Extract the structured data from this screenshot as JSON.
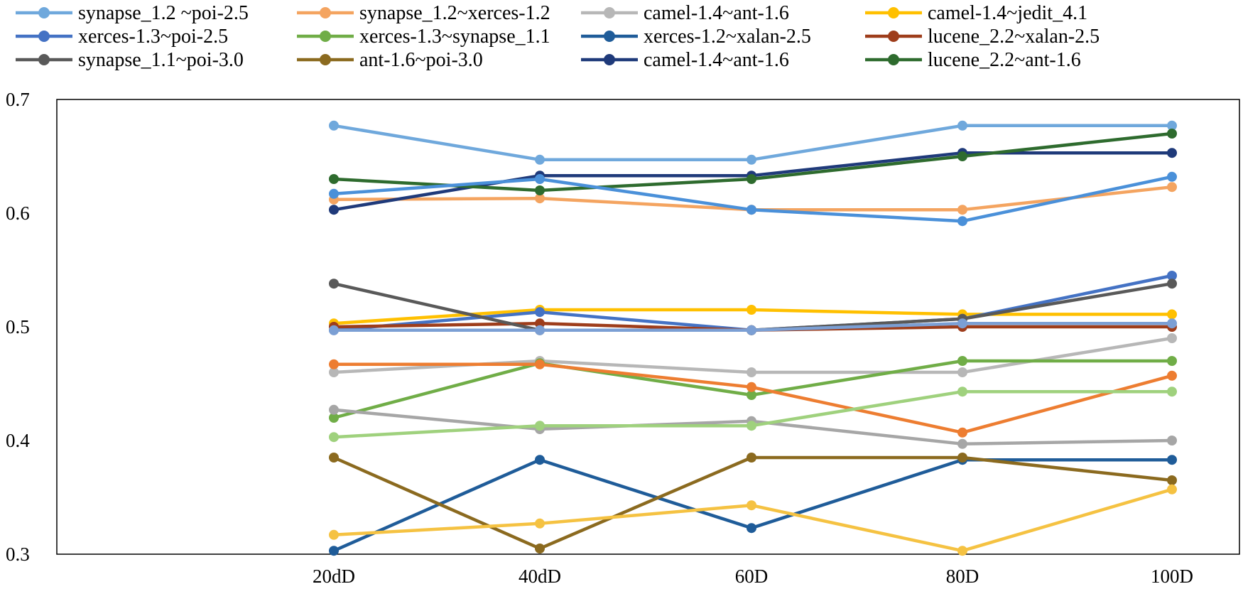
{
  "chart_data": {
    "type": "line",
    "title": "",
    "xlabel": "",
    "ylabel": "",
    "categories": [
      "20dD",
      "40dD",
      "60D",
      "80D",
      "100D"
    ],
    "ylim": [
      0.3,
      0.7
    ],
    "yticks": [
      "0.3",
      "0.4",
      "0.5",
      "0.6",
      "0.7"
    ],
    "legend_position": "top",
    "series": [
      {
        "name": "synapse_1.2 ~poi-2.5",
        "color": "#6fa8dc",
        "values": [
          0.677,
          0.647,
          0.647,
          0.677,
          0.677
        ]
      },
      {
        "name": "synapse_1.2~xerces-1.2",
        "color": "#f4a460",
        "values": [
          0.612,
          0.613,
          0.603,
          0.603,
          0.623
        ]
      },
      {
        "name": "camel-1.4~ant-1.6",
        "color": "#b7b7b7",
        "values": [
          0.46,
          0.47,
          0.46,
          0.46,
          0.49
        ]
      },
      {
        "name": "camel-1.4~jedit_4.1",
        "color": "#ffc000",
        "values": [
          0.503,
          0.515,
          0.515,
          0.511,
          0.511
        ]
      },
      {
        "name": "xerces-1.3~poi-2.5",
        "color": "#4472c4",
        "values": [
          0.497,
          0.513,
          0.497,
          0.507,
          0.545
        ]
      },
      {
        "name": "xerces-1.3~synapse_1.1",
        "color": "#70ad47",
        "values": [
          0.42,
          0.468,
          0.44,
          0.47,
          0.47
        ]
      },
      {
        "name": "xerces-1.2~xalan-2.5",
        "color": "#1f5c99",
        "values": [
          0.303,
          0.383,
          0.323,
          0.383,
          0.383
        ]
      },
      {
        "name": "lucene_2.2~xalan-2.5",
        "color": "#9e3d1b",
        "values": [
          0.5,
          0.503,
          0.497,
          0.5,
          0.5
        ]
      },
      {
        "name": "synapse_1.1~poi-3.0",
        "color": "#595959",
        "values": [
          0.538,
          0.497,
          0.497,
          0.507,
          0.538
        ]
      },
      {
        "name": "ant-1.6~poi-3.0",
        "color": "#8b6a1f",
        "values": [
          0.385,
          0.305,
          0.385,
          0.385,
          0.365
        ]
      },
      {
        "name": "camel-1.4~ant-1.6",
        "color": "#1f3a7a",
        "values": [
          0.603,
          0.633,
          0.633,
          0.653,
          0.653
        ]
      },
      {
        "name": "lucene_2.2~ant-1.6",
        "color": "#2e6b2e",
        "values": [
          0.63,
          0.62,
          0.63,
          0.65,
          0.67
        ]
      },
      {
        "name": "",
        "color": "#ed7d31",
        "values": [
          0.467,
          0.467,
          0.447,
          0.407,
          0.457
        ]
      },
      {
        "name": "",
        "color": "#a6a6a6",
        "values": [
          0.427,
          0.41,
          0.417,
          0.397,
          0.4
        ]
      },
      {
        "name": "",
        "color": "#9fd17d",
        "values": [
          0.403,
          0.413,
          0.413,
          0.443,
          0.443
        ]
      },
      {
        "name": "",
        "color": "#f5c242",
        "values": [
          0.317,
          0.327,
          0.343,
          0.303,
          0.357
        ]
      },
      {
        "name": "",
        "color": "#4a90d9",
        "values": [
          0.617,
          0.63,
          0.603,
          0.593,
          0.632
        ]
      },
      {
        "name": "",
        "color": "#7b9fd4",
        "values": [
          0.497,
          0.497,
          0.497,
          0.503,
          0.503
        ]
      }
    ]
  }
}
